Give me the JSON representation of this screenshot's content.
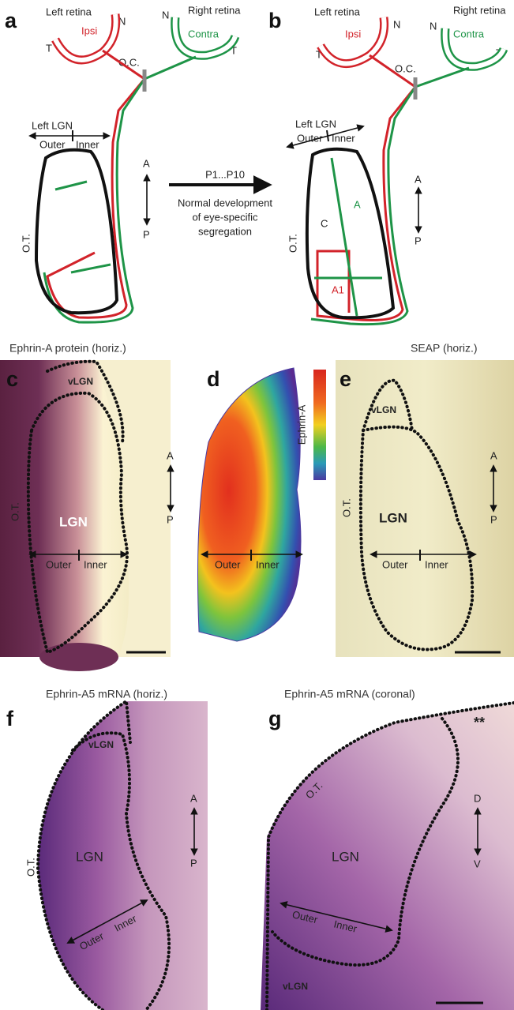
{
  "panel_a": {
    "label": "a",
    "left_retina": "Left retina",
    "ipsi": "Ipsi",
    "left_n": "N",
    "left_t": "T",
    "right_retina": "Right retina",
    "contra": "Contra",
    "right_n": "N",
    "right_t": "T",
    "optic_chiasm": "O.C.",
    "lgn_title": "Left LGN",
    "outer": "Outer",
    "inner": "Inner",
    "anterior": "A",
    "posterior": "P",
    "optic_tract": "O.T."
  },
  "transition": {
    "stage": "P1...P10",
    "caption": [
      "Normal development",
      "of eye-specific",
      "segregation"
    ]
  },
  "panel_b": {
    "label": "b",
    "left_retina": "Left retina",
    "ipsi": "Ipsi",
    "left_n": "N",
    "left_t": "T",
    "right_retina": "Right retina",
    "contra": "Contra",
    "right_n": "N",
    "right_t": "T",
    "optic_chiasm": "O.C.",
    "lgn_title": "Left LGN",
    "outer": "Outer",
    "inner": "Inner",
    "anterior": "A",
    "posterior": "P",
    "optic_tract": "O.T.",
    "layer_c": "C",
    "layer_a": "A",
    "layer_a1": "A1"
  },
  "panel_c": {
    "title": "Ephrin-A protein (horiz.)",
    "label": "c",
    "vlgn": "vLGN",
    "anterior": "A",
    "posterior": "P",
    "optic_tract": "O.T.",
    "lgn": "LGN",
    "outer": "Outer",
    "inner": "Inner"
  },
  "panel_d": {
    "label": "d",
    "colorbar_label": "Ephrin-A",
    "outer": "Outer",
    "inner": "Inner"
  },
  "panel_e": {
    "title": "SEAP (horiz.)",
    "label": "e",
    "vlgn": "vLGN",
    "anterior": "A",
    "posterior": "P",
    "optic_tract": "O.T.",
    "lgn": "LGN",
    "outer": "Outer",
    "inner": "Inner"
  },
  "panel_f": {
    "title": "Ephrin-A5 mRNA (horiz.)",
    "label": "f",
    "vlgn": "vLGN",
    "anterior": "A",
    "posterior": "P",
    "optic_tract": "O.T.",
    "lgn": "LGN",
    "outer": "Outer",
    "inner": "Inner"
  },
  "panel_g": {
    "title": "Ephrin-A5 mRNA (coronal)",
    "label": "g",
    "marker": "**",
    "dorsal": "D",
    "ventral": "V",
    "optic_tract": "O.T.",
    "lgn": "LGN",
    "outer": "Outer",
    "inner": "Inner",
    "vlgn": "vLGN"
  }
}
